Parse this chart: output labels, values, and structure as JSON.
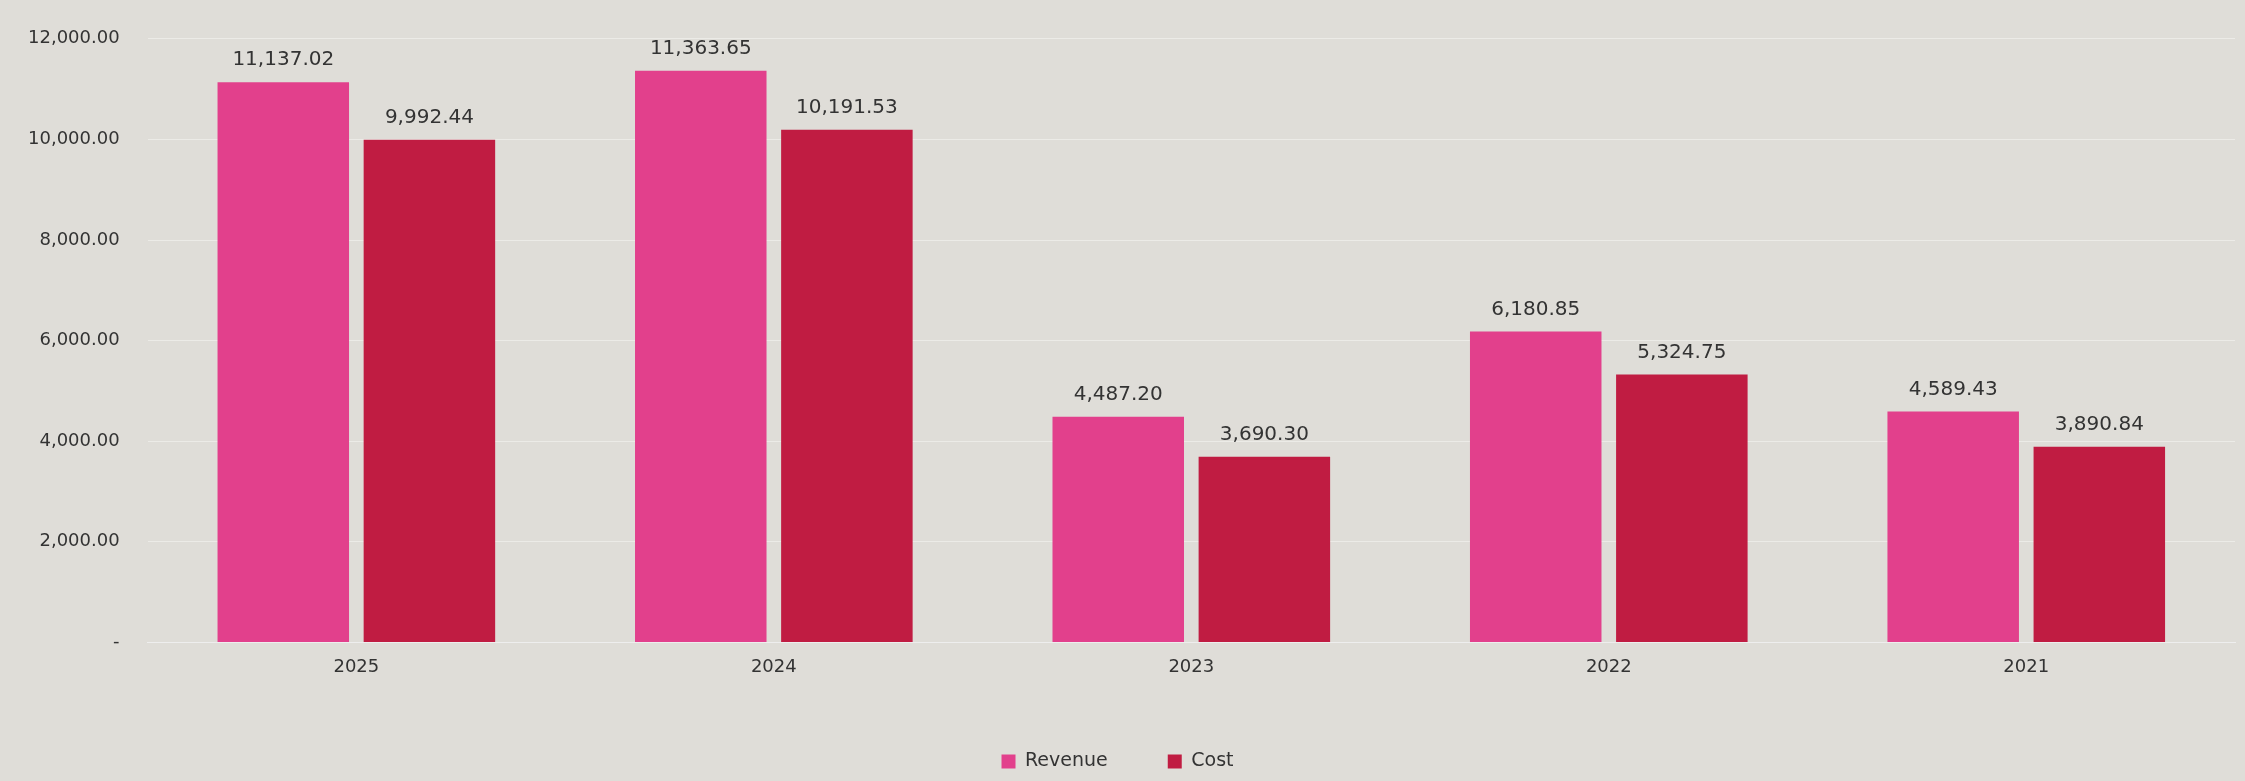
{
  "chart_data": {
    "type": "bar",
    "categories": [
      "2025",
      "2024",
      "2023",
      "2022",
      "2021"
    ],
    "series": [
      {
        "name": "Revenue",
        "color": "#e2408c",
        "values": [
          11137.02,
          11363.65,
          4487.2,
          6180.85,
          4589.43
        ],
        "value_labels": [
          "11,137.02",
          "11,363.65",
          "4,487.20",
          "6,180.85",
          "4,589.43"
        ]
      },
      {
        "name": "Cost",
        "color": "#c01c42",
        "values": [
          9992.44,
          10191.53,
          3690.3,
          5324.75,
          3890.84
        ],
        "value_labels": [
          "9,992.44",
          "10,191.53",
          "3,690.30",
          "5,324.75",
          "3,890.84"
        ]
      }
    ],
    "ylim": [
      0,
      12000
    ],
    "yticks": [
      {
        "value": 0,
        "label": "-"
      },
      {
        "value": 2000,
        "label": "2,000.00"
      },
      {
        "value": 4000,
        "label": "4,000.00"
      },
      {
        "value": 6000,
        "label": "6,000.00"
      },
      {
        "value": 8000,
        "label": "8,000.00"
      },
      {
        "value": 10000,
        "label": "10,000.00"
      },
      {
        "value": 12000,
        "label": "12,000.00"
      }
    ],
    "grid": "y",
    "legend": "bottom"
  }
}
